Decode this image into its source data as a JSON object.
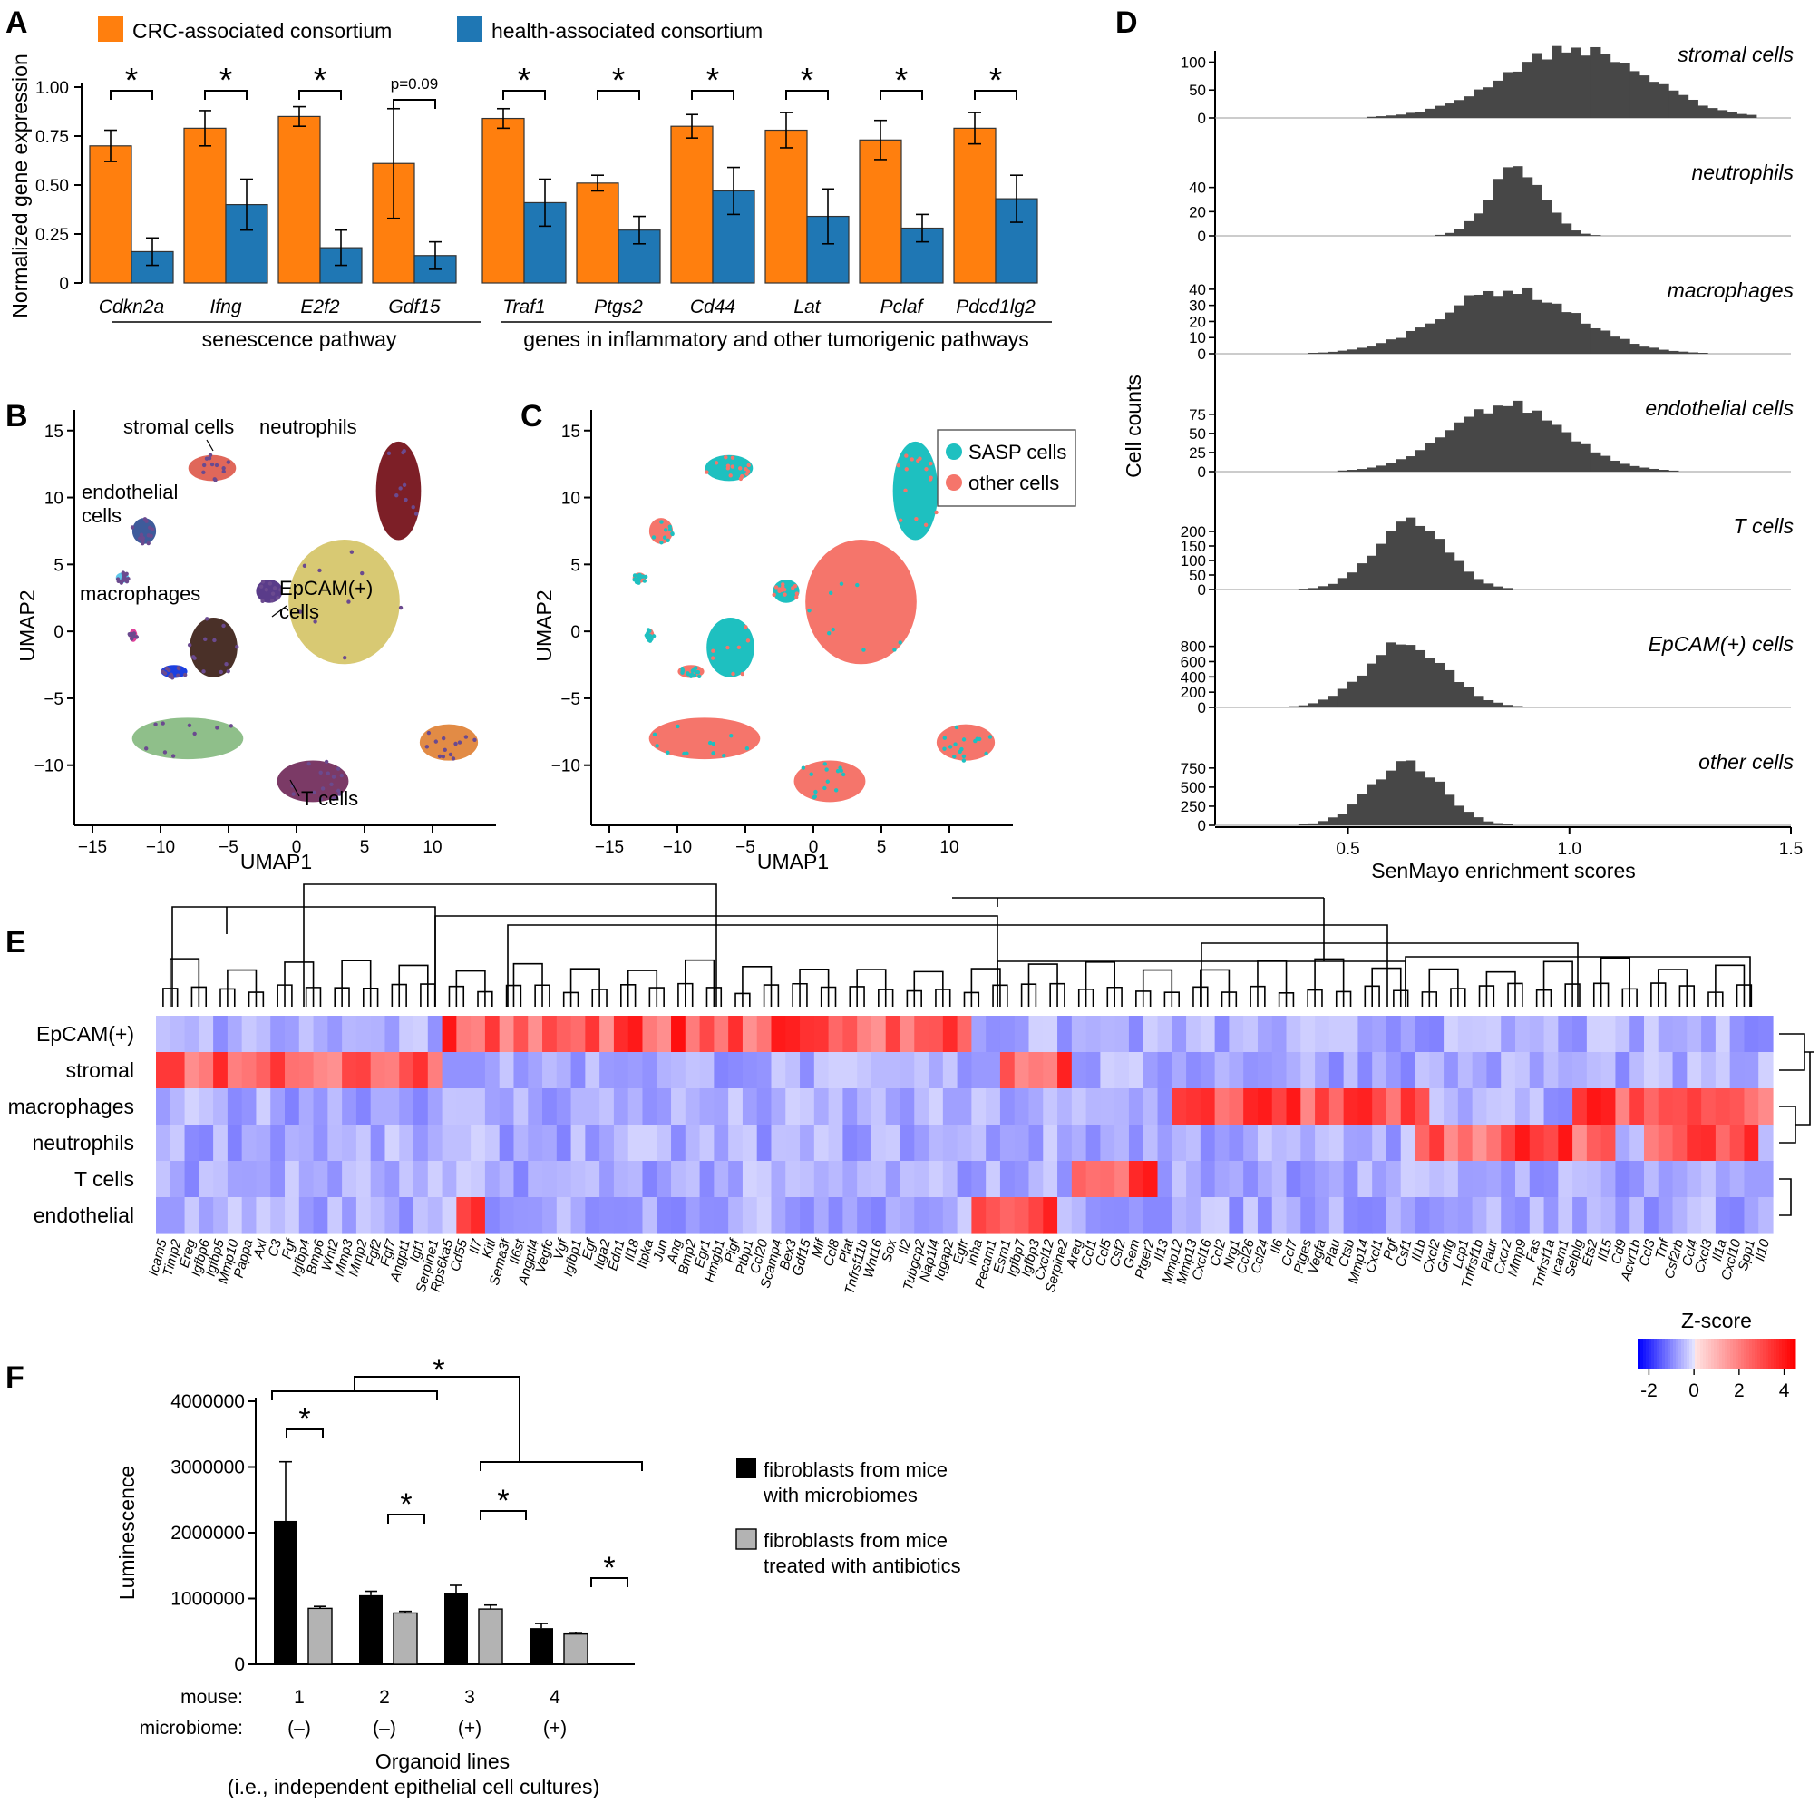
{
  "panels": {
    "a": "A",
    "b": "B",
    "c": "C",
    "d": "D",
    "e": "E",
    "f": "F"
  },
  "colors": {
    "crc": "#ff7f0e",
    "health": "#1f77b4",
    "hist": "#474747",
    "sasp": "#1ec0c0",
    "other": "#f5756b",
    "black": "#000000",
    "gray": "#b3b3b3"
  },
  "chart_data": [
    {
      "id": "A",
      "type": "bar",
      "ylabel": "Normalized gene expression",
      "ylim": [
        0,
        1.0
      ],
      "yticks": [
        "0",
        "0.25",
        "0.50",
        "0.75",
        "1.00"
      ],
      "categories": [
        "Cdkn2a",
        "Ifng",
        "E2f2",
        "Gdf15",
        "Traf1",
        "Ptgs2",
        "Cd44",
        "Lat",
        "Pclaf",
        "Pdcd1lg2"
      ],
      "series": [
        {
          "name": "CRC-associated consortium",
          "values": [
            0.7,
            0.79,
            0.85,
            0.61,
            0.84,
            0.51,
            0.8,
            0.78,
            0.73,
            0.79
          ],
          "err": [
            0.08,
            0.09,
            0.05,
            0.28,
            0.05,
            0.04,
            0.06,
            0.09,
            0.1,
            0.08
          ]
        },
        {
          "name": "health-associated consortium",
          "values": [
            0.16,
            0.4,
            0.18,
            0.14,
            0.41,
            0.27,
            0.47,
            0.34,
            0.28,
            0.43
          ],
          "err": [
            0.07,
            0.13,
            0.09,
            0.07,
            0.12,
            0.07,
            0.12,
            0.14,
            0.07,
            0.12
          ]
        }
      ],
      "annotations": [
        "*",
        "*",
        "*",
        "p=0.09",
        "*",
        "*",
        "*",
        "*",
        "*",
        "*"
      ],
      "groups": [
        "senescence pathway",
        "genes in inflammatory and other tumorigenic pathways"
      ]
    },
    {
      "id": "B",
      "type": "scatter",
      "xlabel": "UMAP1",
      "ylabel": "UMAP2",
      "xticks": [
        "−15",
        "−10",
        "−5",
        "0",
        "5",
        "10"
      ],
      "yticks": [
        "−10",
        "−5",
        "0",
        "5",
        "10",
        "15"
      ],
      "labels": [
        "stromal cells",
        "neutrophils",
        "endothelial",
        "cells",
        "macrophages",
        "EpCAM(+)",
        "cells",
        "T cells"
      ]
    },
    {
      "id": "C",
      "type": "scatter",
      "xlabel": "UMAP1",
      "ylabel": "UMAP2",
      "xticks": [
        "−15",
        "−10",
        "−5",
        "0",
        "5",
        "10"
      ],
      "yticks": [
        "−10",
        "−5",
        "0",
        "5",
        "10",
        "15"
      ],
      "legend": [
        "SASP cells",
        "other cells"
      ]
    },
    {
      "id": "D",
      "type": "bar",
      "ylabel": "Cell counts",
      "xlabel": "SenMayo enrichment scores",
      "xlim": [
        0.2,
        1.5
      ],
      "xticks": [
        "0.5",
        "1.0",
        "1.5"
      ],
      "panels": [
        {
          "name": "stromal cells",
          "ymax": 130,
          "yticks": [
            "0",
            "50",
            "100"
          ],
          "center": 1.0,
          "width": 0.16,
          "peak": 125
        },
        {
          "name": "neutrophils",
          "ymax": 60,
          "yticks": [
            "0",
            "20",
            "40"
          ],
          "center": 0.87,
          "width": 0.06,
          "peak": 57
        },
        {
          "name": "macrophages",
          "ymax": 45,
          "yticks": [
            "0",
            "10",
            "20",
            "30",
            "40"
          ],
          "center": 0.85,
          "width": 0.15,
          "peak": 40
        },
        {
          "name": "endothelial cells",
          "ymax": 95,
          "yticks": [
            "0",
            "25",
            "50",
            "75"
          ],
          "center": 0.85,
          "width": 0.13,
          "peak": 88
        },
        {
          "name": "T cells",
          "ymax": 250,
          "yticks": [
            "0",
            "50",
            "100",
            "150",
            "200"
          ],
          "center": 0.63,
          "width": 0.08,
          "peak": 235
        },
        {
          "name": "EpCAM(+) cells",
          "ymax": 950,
          "yticks": [
            "0",
            "200",
            "400",
            "600",
            "800"
          ],
          "center": 0.62,
          "width": 0.09,
          "peak": 850
        },
        {
          "name": "other cells",
          "ymax": 950,
          "yticks": [
            "0",
            "250",
            "500",
            "750"
          ],
          "center": 0.62,
          "width": 0.08,
          "peak": 850
        }
      ]
    },
    {
      "id": "E",
      "type": "heatmap",
      "rows": [
        "EpCAM(+)",
        "stromal",
        "macrophages",
        "neutrophils",
        "T cells",
        "endothelial"
      ],
      "genes": [
        "Icam5",
        "Timp2",
        "Ereg",
        "Igfbp6",
        "Igfbp5",
        "Mmp10",
        "Pappa",
        "Axl",
        "C3",
        "Fgf",
        "Igfbp4",
        "Bmp6",
        "Wnt2",
        "Mmp3",
        "Mmp2",
        "Fgf2",
        "Fgf7",
        "Angpt1",
        "Igf1",
        "Serpine1",
        "Rps6ka5",
        "Cd55",
        "Il7",
        "Kitl",
        "Sema3f",
        "Il6st",
        "Angptl4",
        "Vegfc",
        "Vgf",
        "Igfbp1",
        "Egf",
        "Itga2",
        "Edn1",
        "Il18",
        "Itpka",
        "Jun",
        "Ang",
        "Bmp2",
        "Egr1",
        "Hmgb1",
        "Pigf",
        "Ptbp1",
        "Ccl20",
        "Scamp4",
        "Bex3",
        "Gdf15",
        "Mif",
        "Ccl8",
        "Plat",
        "Tnfrsf11b",
        "Wnt16",
        "Sox",
        "Il2",
        "Tubgcp2",
        "Nap1l4",
        "Iqgap2",
        "Egfr",
        "Inha",
        "Pecam1",
        "Esm1",
        "Igfbp7",
        "Igfbp3",
        "Cxcl12",
        "Serpine2",
        "Areg",
        "Ccl1",
        "Ccl5",
        "Csf2",
        "Gem",
        "Ptger2",
        "Il13",
        "Mmp12",
        "Mmp13",
        "Cxcl16",
        "Ccl2",
        "Nrg1",
        "Ccl26",
        "Ccl24",
        "Il6",
        "Ccl7",
        "Ptges",
        "Vegfa",
        "Plau",
        "Ctsb",
        "Mmp14",
        "Cxcl1",
        "Pgf",
        "Csf1",
        "Il1b",
        "Cxcl2",
        "Gmfg",
        "Lcp1",
        "Tnfrsf1b",
        "Plaur",
        "Cxcr2",
        "Mmp9",
        "Fas",
        "Tnfrsf1a",
        "Icam1",
        "Selplg",
        "Ets2",
        "Il15",
        "Cd9",
        "Acvr1b",
        "Ccl3",
        "Tnf",
        "Csf2rb",
        "Ccl4",
        "Cxcl3",
        "Il1a",
        "Cxcl10",
        "Spp1",
        "Il10"
      ],
      "colorbar": {
        "title": "Z-score",
        "ticks": [
          "-2",
          "0",
          "2",
          "4"
        ]
      }
    },
    {
      "id": "F",
      "type": "bar",
      "ylabel": "Luminescence",
      "ylim": [
        0,
        4000000
      ],
      "yticks": [
        "0",
        "1000000",
        "2000000",
        "3000000",
        "4000000"
      ],
      "categories": [
        "1",
        "2",
        "3",
        "4"
      ],
      "series": [
        {
          "name": "fibroblasts from mice with microbiomes",
          "values": [
            2180000,
            1050000,
            1080000,
            550000
          ],
          "err": [
            900000,
            60000,
            120000,
            70000
          ]
        },
        {
          "name": "fibroblasts from mice treated with antibiotics",
          "values": [
            850000,
            780000,
            840000,
            460000
          ],
          "err": [
            30000,
            25000,
            60000,
            25000
          ]
        }
      ],
      "row_labels": [
        "mouse:",
        "microbiome:"
      ],
      "microbiome": [
        "(–)",
        "(–)",
        "(+)",
        "(+)"
      ],
      "annotations": [
        "*",
        "*",
        "*",
        "*",
        "*"
      ],
      "xlabel": "Organoid lines",
      "xlabel2": "(i.e., independent epithelial cell cultures)",
      "legend": [
        "fibroblasts from mice",
        "with microbiomes",
        "fibroblasts from mice",
        "treated with antibiotics"
      ]
    }
  ]
}
